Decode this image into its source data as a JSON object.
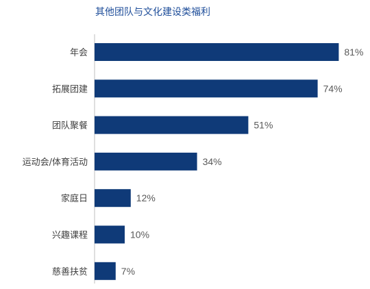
{
  "chart_data": {
    "type": "bar",
    "orientation": "horizontal",
    "title": "其他团队与文化建设类福利",
    "categories": [
      "年会",
      "拓展团建",
      "团队聚餐",
      "运动会/体育活动",
      "家庭日",
      "兴趣课程",
      "慈善扶贫"
    ],
    "values": [
      81,
      74,
      51,
      34,
      12,
      10,
      7
    ],
    "value_labels": [
      "81%",
      "74%",
      "51%",
      "34%",
      "12%",
      "10%",
      "7%"
    ],
    "unit": "%",
    "xlim": [
      0,
      100
    ],
    "grid": false,
    "legend": "none",
    "bar_color": "#0f3a78",
    "title_color": "#1f4e9a"
  }
}
